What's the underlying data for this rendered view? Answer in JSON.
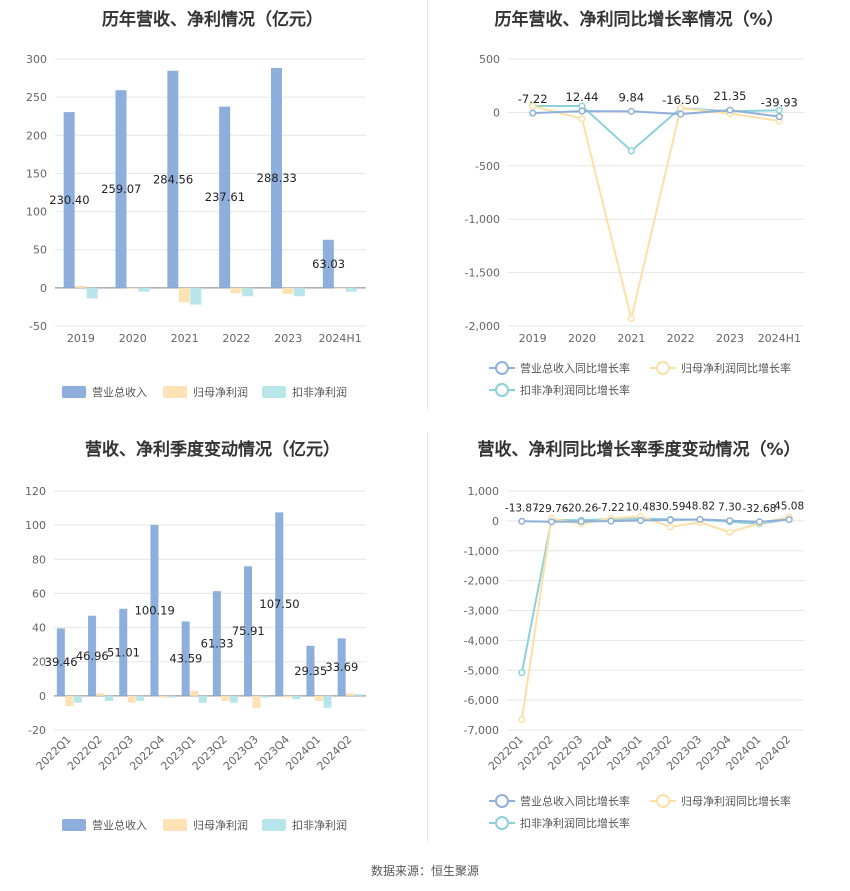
{
  "charts": {
    "c1": {
      "title": "历年营收、净利情况（亿元）"
    },
    "c2": {
      "title": "历年营收、净利同比增长率情况（%）"
    },
    "c3": {
      "title": "营收、净利季度变动情况（亿元）"
    },
    "c4": {
      "title": "营收、净利同比增长率季度变动情况（%）"
    }
  },
  "source": "数据来源：恒生聚源",
  "colors": {
    "revenue": "#8eaedc",
    "parent": "#fde2b6",
    "deducted": "#b8e5ea",
    "line1": "#8fb0d8",
    "line2": "#fbe0a8",
    "line3": "#8dd1db",
    "grid": "#e5e5e5",
    "axis": "#999999"
  },
  "chart_data": [
    {
      "type": "bar",
      "title": "历年营收、净利情况（亿元）",
      "categories": [
        "2019",
        "2020",
        "2021",
        "2022",
        "2023",
        "2024H1"
      ],
      "ylim": [
        -50,
        300
      ],
      "yticks": [
        -50,
        0,
        50,
        100,
        150,
        200,
        250,
        300
      ],
      "legend_position": "bottom",
      "series": [
        {
          "name": "营业总收入",
          "values": [
            230.4,
            259.07,
            284.56,
            237.61,
            288.33,
            63.03
          ],
          "labels": [
            "230.40",
            "259.07",
            "284.56",
            "237.61",
            "288.33",
            "63.03"
          ]
        },
        {
          "name": "归母净利润",
          "values": [
            2.5,
            -1.0,
            -19.0,
            -7.0,
            -8.0,
            -1.0
          ]
        },
        {
          "name": "扣非净利润",
          "values": [
            -14.0,
            -5.0,
            -22.0,
            -11.0,
            -11.0,
            -5.0
          ]
        }
      ]
    },
    {
      "type": "line",
      "title": "历年营收、净利同比增长率情况（%）",
      "categories": [
        "2019",
        "2020",
        "2021",
        "2022",
        "2023",
        "2024H1"
      ],
      "ylim": [
        -2000,
        500
      ],
      "yticks": [
        -2000,
        -1500,
        -1000,
        -500,
        0,
        500
      ],
      "ytick_labels": [
        "-2,000",
        "-1,500",
        "-1,000",
        "-500",
        "0",
        "500"
      ],
      "legend_position": "bottom",
      "series": [
        {
          "name": "营业总收入同比增长率",
          "values": [
            -7.22,
            12.44,
            9.84,
            -16.5,
            21.35,
            -39.93
          ],
          "labels": [
            "-7.22",
            "12.44",
            "9.84",
            "-16.50",
            "21.35",
            "-39.93"
          ]
        },
        {
          "name": "归母净利润同比增长率",
          "values": [
            60,
            -60,
            -1930,
            40,
            -10,
            -80
          ]
        },
        {
          "name": "扣非净利润同比增长率",
          "values": [
            60,
            60,
            -360,
            40,
            10,
            20
          ]
        }
      ]
    },
    {
      "type": "bar",
      "title": "营收、净利季度变动情况（亿元）",
      "categories": [
        "2022Q1",
        "2022Q2",
        "2022Q3",
        "2022Q4",
        "2023Q1",
        "2023Q2",
        "2023Q3",
        "2023Q4",
        "2024Q1",
        "2024Q2"
      ],
      "ylim": [
        -20,
        120
      ],
      "yticks": [
        -20,
        0,
        20,
        40,
        60,
        80,
        100,
        120
      ],
      "legend_position": "bottom",
      "series": [
        {
          "name": "营业总收入",
          "values": [
            39.46,
            46.96,
            51.01,
            100.19,
            43.59,
            61.33,
            75.91,
            107.5,
            29.35,
            33.69
          ],
          "labels": [
            "39.46",
            "46.96",
            "51.01",
            "100.19",
            "43.59",
            "61.33",
            "75.91",
            "107.50",
            "29.35",
            "33.69"
          ]
        },
        {
          "name": "归母净利润",
          "values": [
            -6,
            1.5,
            -4,
            -1,
            3,
            -3,
            -7,
            -1,
            -3,
            1.5
          ]
        },
        {
          "name": "扣非净利润",
          "values": [
            -4,
            -3,
            -3,
            -1,
            -4,
            -4,
            -1,
            -2,
            -7,
            1.0
          ]
        }
      ]
    },
    {
      "type": "line",
      "title": "营收、净利同比增长率季度变动情况（%）",
      "categories": [
        "2022Q1",
        "2022Q2",
        "2022Q3",
        "2022Q4",
        "2023Q1",
        "2023Q2",
        "2023Q3",
        "2023Q4",
        "2024Q1",
        "2024Q2"
      ],
      "ylim": [
        -7000,
        1000
      ],
      "yticks": [
        -7000,
        -6000,
        -5000,
        -4000,
        -3000,
        -2000,
        -1000,
        0,
        1000
      ],
      "ytick_labels": [
        "-7,000",
        "-6,000",
        "-5,000",
        "-4,000",
        "-3,000",
        "-2,000",
        "-1,000",
        "0",
        "1,000"
      ],
      "legend_position": "bottom",
      "series": [
        {
          "name": "营业总收入同比增长率",
          "values": [
            -13.87,
            -29.76,
            -20.26,
            -7.22,
            10.48,
            30.59,
            48.82,
            7.3,
            -32.68,
            45.08
          ],
          "labels": [
            "-13.87",
            "-29.76",
            "-20.26",
            "-7.22",
            "10.48",
            "30.59",
            "48.82",
            "7.30",
            "-32.68",
            "45.08"
          ]
        },
        {
          "name": "归母净利润同比增长率",
          "values": [
            -6650,
            80,
            -100,
            80,
            150,
            -200,
            -50,
            -380,
            -80,
            120
          ]
        },
        {
          "name": "扣非净利润同比增长率",
          "values": [
            -5080,
            30,
            20,
            60,
            80,
            50,
            40,
            -30,
            -100,
            60
          ]
        }
      ]
    }
  ]
}
